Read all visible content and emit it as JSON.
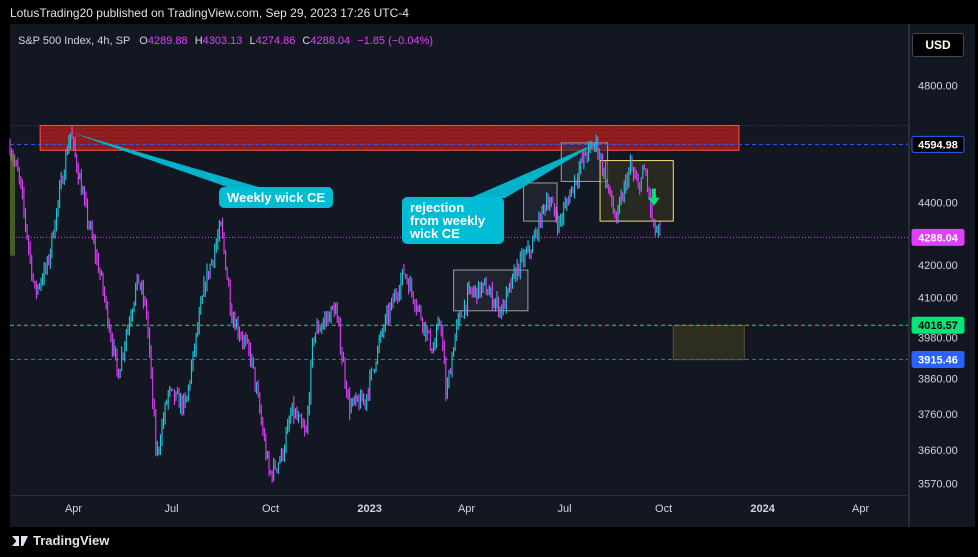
{
  "header": {
    "publisher": "LotusTrading20 published on TradingView.com, Sep 29, 2023 17:26 UTC-4"
  },
  "legend": {
    "symbol": "S&P 500 Index, 4h, SP",
    "open_label": "O",
    "open": "4289.88",
    "high_label": "H",
    "high": "4303.13",
    "low_label": "L",
    "low": "4274.86",
    "close_label": "C",
    "close": "4288.04",
    "change": "−1.85 (−0.04%)"
  },
  "currency_button": "USD",
  "footer": {
    "brand": "TradingView"
  },
  "colors": {
    "background": "#131722",
    "candle_up": "#26c6da",
    "candle_down": "#e040fb",
    "supply_zone": "#b71c1c",
    "callout": "#00bcd4",
    "last_price": "#e040fb",
    "support_green": "#00e676",
    "support_blue": "#2962ff"
  },
  "annotations": {
    "callout_weekly": "Weekly wick CE",
    "callout_rejection_1": "rejection",
    "callout_rejection_2": "from weekly",
    "callout_rejection_3": "wick CE",
    "down_arrow": "down-arrow-icon"
  },
  "chart_data": {
    "type": "line",
    "symbol": "S&P 500 Index",
    "timeframe": "4h",
    "x_tick_labels": [
      "Apr",
      "Jul",
      "Oct",
      "2023",
      "Apr",
      "Jul",
      "Oct",
      "2024",
      "Apr"
    ],
    "y_tick_labels": [
      "4800.00",
      "4400.00",
      "4200.00",
      "4100.00",
      "3980.00",
      "3860.00",
      "3760.00",
      "3660.00",
      "3570.00"
    ],
    "y_ticks": [
      4800,
      4400,
      4200,
      4100,
      3980,
      3860,
      3760,
      3660,
      3570
    ],
    "scale": "log",
    "ylim": [
      3540,
      4900
    ],
    "x_range": [
      "2022-02-01",
      "2024-05-15"
    ],
    "price_levels": [
      {
        "label": "4594.98",
        "value": 4594.98,
        "style": "dashed",
        "color": "#2962ff"
      },
      {
        "label": "4288.04",
        "value": 4288.04,
        "style": "dotted",
        "color": "#e040fb"
      },
      {
        "label": "4016.57",
        "value": 4016.57,
        "style": "dashed",
        "color": "#00e676"
      },
      {
        "label": "3915.46",
        "value": 3915.46,
        "style": "dashed",
        "color": "#2962ff"
      }
    ],
    "zones": [
      {
        "kind": "supply",
        "x_start": "2022-03-01",
        "x_end": "2023-12-10",
        "y_low": 4575,
        "y_high": 4660,
        "color": "#b71c1c"
      },
      {
        "kind": "box",
        "x_start": "2023-03-20",
        "x_end": "2023-05-28",
        "y_low": 4060,
        "y_high": 4185,
        "color": "#2a2e39"
      },
      {
        "kind": "box",
        "x_start": "2023-05-24",
        "x_end": "2023-06-24",
        "y_low": 4340,
        "y_high": 4465,
        "color": "#2a2e39"
      },
      {
        "kind": "box",
        "x_start": "2023-06-28",
        "x_end": "2023-08-10",
        "y_low": 4470,
        "y_high": 4600,
        "color": "#2a2e39"
      },
      {
        "kind": "box",
        "x_start": "2023-08-03",
        "x_end": "2023-10-10",
        "y_low": 4340,
        "y_high": 4540,
        "color": "#4a4a2a"
      },
      {
        "kind": "demand",
        "x_start": "2023-10-10",
        "x_end": "2023-12-15",
        "y_low": 3915,
        "y_high": 4016,
        "color": "#33331f"
      }
    ],
    "series": [
      {
        "x": [
          "2022-02-01",
          "2022-02-10",
          "2022-02-24",
          "2022-03-08",
          "2022-03-29",
          "2022-04-12",
          "2022-04-27",
          "2022-05-12",
          "2022-05-31",
          "2022-06-08",
          "2022-06-17",
          "2022-06-28",
          "2022-07-14",
          "2022-08-01",
          "2022-08-16",
          "2022-08-26",
          "2022-09-13",
          "2022-09-30",
          "2022-10-12",
          "2022-10-21",
          "2022-11-03",
          "2022-11-10",
          "2022-11-30",
          "2022-12-13",
          "2022-12-28",
          "2023-01-13",
          "2023-02-02",
          "2023-02-16",
          "2023-03-01",
          "2023-03-08",
          "2023-03-13",
          "2023-03-22",
          "2023-04-03",
          "2023-04-18",
          "2023-05-04",
          "2023-05-18",
          "2023-06-01",
          "2023-06-15",
          "2023-06-26",
          "2023-07-06",
          "2023-07-20",
          "2023-07-31",
          "2023-08-08",
          "2023-08-18",
          "2023-08-31",
          "2023-09-07",
          "2023-09-14",
          "2023-09-21",
          "2023-09-29"
        ],
        "y": [
          4590,
          4470,
          4115,
          4200,
          4637,
          4380,
          4150,
          3870,
          4160,
          4050,
          3640,
          3820,
          3780,
          4140,
          4320,
          4050,
          3920,
          3590,
          3650,
          3770,
          3700,
          3990,
          4070,
          3780,
          3800,
          4000,
          4180,
          4060,
          3940,
          4040,
          3808,
          4000,
          4110,
          4130,
          4060,
          4190,
          4260,
          4420,
          4330,
          4430,
          4560,
          4600,
          4480,
          4340,
          4520,
          4450,
          4510,
          4320,
          4288
        ]
      }
    ]
  }
}
